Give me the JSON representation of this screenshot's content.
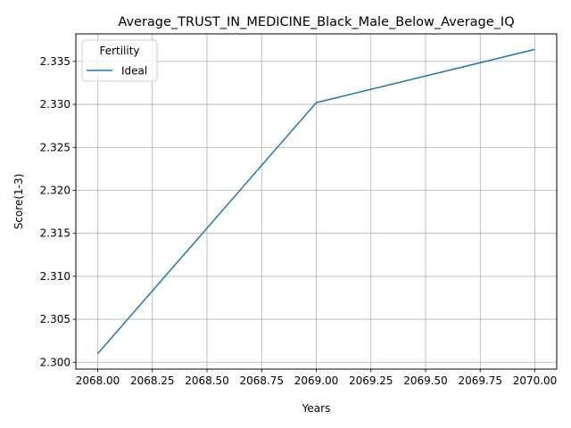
{
  "chart_data": {
    "type": "line",
    "title": "Average_TRUST_IN_MEDICINE_Black_Male_Below_Average_IQ",
    "xlabel": "Years",
    "ylabel": "Score(1-3)",
    "xlim": [
      2067.9,
      2070.1
    ],
    "ylim": [
      2.2992,
      2.3382
    ],
    "xticks": [
      2068.0,
      2068.25,
      2068.5,
      2068.75,
      2069.0,
      2069.25,
      2069.5,
      2069.75,
      2070.0
    ],
    "xtick_labels": [
      "2068.00",
      "2068.25",
      "2068.50",
      "2068.75",
      "2069.00",
      "2069.25",
      "2069.50",
      "2069.75",
      "2070.00"
    ],
    "yticks": [
      2.3,
      2.305,
      2.31,
      2.315,
      2.32,
      2.325,
      2.33,
      2.335
    ],
    "ytick_labels": [
      "2.300",
      "2.305",
      "2.310",
      "2.315",
      "2.320",
      "2.325",
      "2.330",
      "2.335"
    ],
    "grid": true,
    "legend": {
      "title": "Fertility",
      "placement": "top-left"
    },
    "series": [
      {
        "name": "Ideal",
        "color": "#1f77b4",
        "x": [
          2068,
          2069,
          2070
        ],
        "y": [
          2.301,
          2.3302,
          2.3364
        ]
      }
    ]
  }
}
